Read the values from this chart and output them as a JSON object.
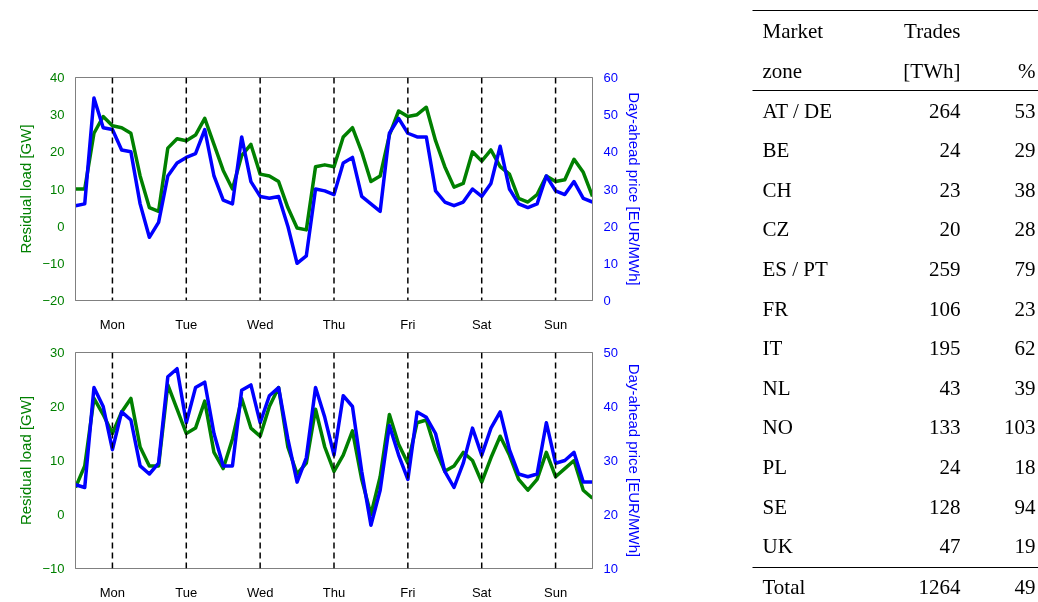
{
  "chart_data": [
    {
      "type": "line",
      "ylabel": "Residual load [GW]",
      "y2label": "Day-ahead price [EUR/MWh]",
      "ylim": [
        -20,
        40
      ],
      "y2lim": [
        0,
        60
      ],
      "categories": [
        null,
        null,
        null,
        null,
        "Mon",
        null,
        null,
        null,
        null,
        null,
        null,
        null,
        "Tue",
        null,
        null,
        null,
        null,
        null,
        null,
        null,
        "Wed",
        null,
        null,
        null,
        null,
        null,
        null,
        null,
        "Thu",
        null,
        null,
        null,
        null,
        null,
        null,
        null,
        "Fri",
        null,
        null,
        null,
        null,
        null,
        null,
        null,
        "Sat",
        null,
        null,
        null,
        null,
        null,
        null,
        null,
        "Sun",
        null,
        null,
        null,
        null
      ],
      "yticks": [
        -20,
        -10,
        0,
        10,
        20,
        30,
        40
      ],
      "y2ticks": [
        0,
        10,
        20,
        30,
        40,
        50,
        60
      ],
      "grid": false,
      "line_style": "solid",
      "ref_lines": [
        {
          "axis": "x",
          "value": "Mon",
          "color": "#000000",
          "line_style": "dashed"
        },
        {
          "axis": "x",
          "value": "Tue",
          "color": "#000000",
          "line_style": "dashed"
        },
        {
          "axis": "x",
          "value": "Wed",
          "color": "#000000",
          "line_style": "dashed"
        },
        {
          "axis": "x",
          "value": "Thu",
          "color": "#000000",
          "line_style": "dashed"
        },
        {
          "axis": "x",
          "value": "Fri",
          "color": "#000000",
          "line_style": "dashed"
        },
        {
          "axis": "x",
          "value": "Sat",
          "color": "#000000",
          "line_style": "dashed"
        },
        {
          "axis": "x",
          "value": "Sun",
          "color": "#000000",
          "line_style": "dashed"
        }
      ],
      "series": [
        {
          "color": "#008000",
          "values": [
            10,
            10,
            25,
            29.5,
            27,
            26.5,
            25,
            13.5,
            5,
            4,
            21,
            23.5,
            23,
            24.5,
            29,
            22,
            15,
            10,
            19,
            22,
            14,
            13.5,
            12,
            5,
            -0.5,
            -1,
            16,
            16.5,
            16,
            24,
            26.5,
            20,
            12,
            13.5,
            24.5,
            31,
            29.5,
            30,
            32,
            23,
            16,
            10.5,
            11.5,
            20,
            17.5,
            20.5,
            16,
            14,
            7.5,
            6.5,
            8.5,
            13.5,
            12,
            12.5,
            18,
            14.5,
            8
          ]
        },
        {
          "color": "#0000ff",
          "axis": "y2",
          "values": [
            25.5,
            26,
            54.5,
            46.5,
            46,
            40.5,
            40,
            26,
            17,
            21,
            33.5,
            37,
            38.5,
            39.5,
            46,
            33.5,
            27,
            26,
            44,
            32,
            28,
            27.5,
            28,
            20,
            10,
            12,
            30,
            29.5,
            28.5,
            37,
            38.5,
            28,
            26,
            24,
            45,
            49,
            45,
            44,
            44,
            29.5,
            26.5,
            25.5,
            26.5,
            30,
            28,
            31.5,
            41.5,
            30,
            26,
            25,
            26,
            33.5,
            29.5,
            28.5,
            32,
            27.5,
            26.5
          ]
        }
      ]
    },
    {
      "type": "line",
      "ylabel": "Residual load [GW]",
      "y2label": "Day-ahead price [EUR/MWh]",
      "ylim": [
        -10,
        30
      ],
      "y2lim": [
        10,
        50
      ],
      "categories": [
        null,
        null,
        null,
        null,
        "Mon",
        null,
        null,
        null,
        null,
        null,
        null,
        null,
        "Tue",
        null,
        null,
        null,
        null,
        null,
        null,
        null,
        "Wed",
        null,
        null,
        null,
        null,
        null,
        null,
        null,
        "Thu",
        null,
        null,
        null,
        null,
        null,
        null,
        null,
        "Fri",
        null,
        null,
        null,
        null,
        null,
        null,
        null,
        "Sat",
        null,
        null,
        null,
        null,
        null,
        null,
        null,
        "Sun",
        null,
        null,
        null,
        null
      ],
      "yticks": [
        -10,
        0,
        10,
        20,
        30
      ],
      "y2ticks": [
        10,
        20,
        30,
        40,
        50
      ],
      "grid": false,
      "line_style": "solid",
      "ref_lines": [
        {
          "axis": "x",
          "value": "Mon",
          "color": "#000000",
          "line_style": "dashed"
        },
        {
          "axis": "x",
          "value": "Tue",
          "color": "#000000",
          "line_style": "dashed"
        },
        {
          "axis": "x",
          "value": "Wed",
          "color": "#000000",
          "line_style": "dashed"
        },
        {
          "axis": "x",
          "value": "Thu",
          "color": "#000000",
          "line_style": "dashed"
        },
        {
          "axis": "x",
          "value": "Fri",
          "color": "#000000",
          "line_style": "dashed"
        },
        {
          "axis": "x",
          "value": "Sat",
          "color": "#000000",
          "line_style": "dashed"
        },
        {
          "axis": "x",
          "value": "Sun",
          "color": "#000000",
          "line_style": "dashed"
        }
      ],
      "series": [
        {
          "color": "#008000",
          "values": [
            5,
            9,
            21.5,
            18.5,
            15,
            19,
            21.5,
            12.5,
            9,
            9,
            24,
            19.5,
            15,
            16,
            21,
            11.5,
            8.5,
            14,
            21.5,
            16,
            14.5,
            20,
            23.5,
            12.5,
            7.5,
            9.5,
            19.5,
            12.5,
            8,
            11,
            15.5,
            6.5,
            0,
            7,
            18.5,
            13,
            9.5,
            17,
            17.5,
            12,
            8,
            9,
            11.5,
            10,
            6,
            10.5,
            14.5,
            11,
            6.5,
            4.5,
            6.5,
            11.5,
            7,
            8.5,
            10,
            4.5,
            3
          ]
        },
        {
          "color": "#0000ff",
          "axis": "y2",
          "values": [
            25.5,
            25,
            43.5,
            40,
            32,
            39,
            37.5,
            29,
            27.5,
            29.5,
            45.5,
            47,
            37,
            43.5,
            44.5,
            35,
            29,
            29,
            43,
            44,
            37,
            42,
            43.5,
            34,
            26,
            30.5,
            43.5,
            38,
            31,
            42,
            40,
            28,
            18,
            24.5,
            36.5,
            31,
            26.5,
            39,
            38,
            35,
            28,
            25,
            29.5,
            36,
            31,
            36,
            39,
            32,
            27.5,
            27,
            27.5,
            37,
            29.5,
            30,
            31.5,
            26,
            26
          ]
        }
      ]
    },
    {
      "type": "other",
      "xlabel": "Market zone",
      "data_labels": true,
      "categories": [
        "AT / DE",
        "BE",
        "CH",
        "CZ",
        "ES / PT",
        "FR",
        "IT",
        "NL",
        "NO",
        "PL",
        "SE",
        "UK",
        "Total"
      ],
      "series": [
        {
          "name": "Trades [TWh]",
          "values": [
            264,
            24,
            23,
            20,
            259,
            106,
            195,
            43,
            133,
            24,
            128,
            47,
            1264
          ]
        },
        {
          "name": "%",
          "values": [
            53,
            29,
            38,
            28,
            79,
            23,
            62,
            39,
            103,
            18,
            94,
            19,
            49
          ]
        }
      ]
    }
  ]
}
